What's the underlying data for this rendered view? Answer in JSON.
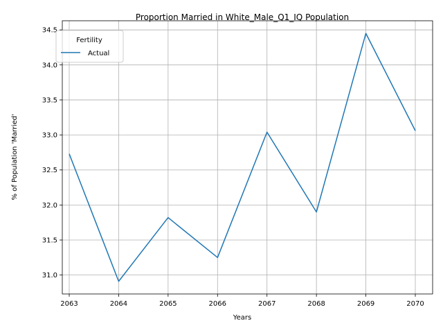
{
  "chart_data": {
    "type": "line",
    "title": "Proportion Married in White_Male_Q1_IQ Population",
    "xlabel": "Years",
    "ylabel": "% of Population 'Married'",
    "x": [
      2063,
      2064,
      2065,
      2066,
      2067,
      2068,
      2069,
      2070
    ],
    "xticks": [
      "2063",
      "2064",
      "2065",
      "2066",
      "2067",
      "2068",
      "2069",
      "2070"
    ],
    "yticks": [
      "31.0",
      "31.5",
      "32.0",
      "32.5",
      "33.0",
      "33.5",
      "34.0",
      "34.5"
    ],
    "ylim": [
      30.73,
      34.63
    ],
    "grid": true,
    "legend": {
      "title": "Fertility",
      "position": "upper-left"
    },
    "series": [
      {
        "name": "Actual",
        "color": "#1f77b4",
        "values": [
          32.73,
          30.91,
          31.82,
          31.25,
          33.04,
          31.9,
          34.45,
          33.06
        ]
      }
    ]
  }
}
